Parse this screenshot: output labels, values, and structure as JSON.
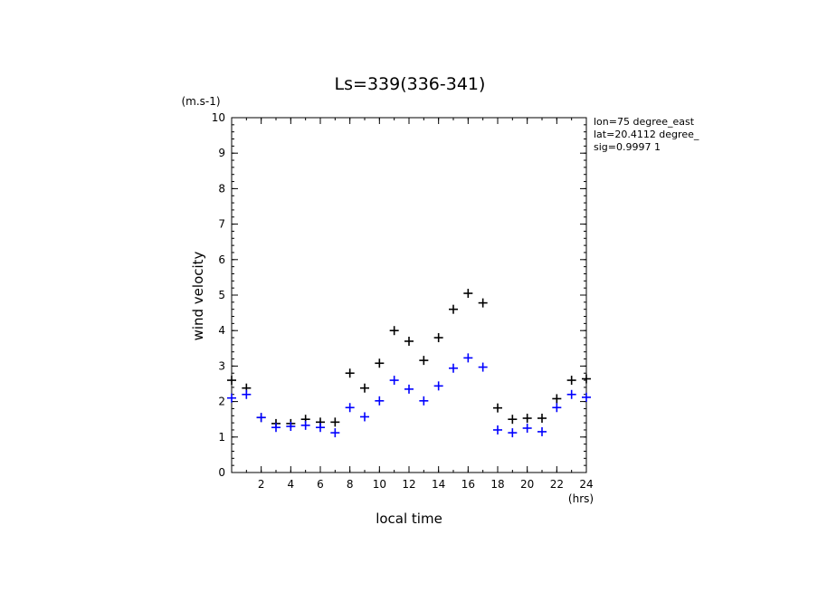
{
  "chart_data": {
    "type": "scatter",
    "title": "Ls=339(336-341)",
    "ylabel": "wind velocity",
    "xlabel": "local time",
    "yunit": "(m.s-1)",
    "xunit": "(hrs)",
    "xlim": [
      0,
      24
    ],
    "ylim": [
      0,
      10
    ],
    "xticks": [
      2,
      4,
      6,
      8,
      10,
      12,
      14,
      16,
      18,
      20,
      22,
      24
    ],
    "yticks": [
      0,
      1,
      2,
      3,
      4,
      5,
      6,
      7,
      8,
      9,
      10
    ],
    "info_lines": [
      "lon=75 degree_east",
      "lat=20.4112 degree_",
      "sig=0.9997 1"
    ],
    "series": [
      {
        "color": "#000000",
        "x": [
          0,
          1,
          2,
          3,
          4,
          5,
          6,
          7,
          8,
          9,
          10,
          11,
          12,
          13,
          14,
          15,
          16,
          17,
          18,
          19,
          20,
          21,
          22,
          23,
          24
        ],
        "y": [
          2.6,
          2.38,
          1.55,
          1.38,
          1.38,
          1.5,
          1.42,
          1.42,
          2.8,
          2.38,
          3.08,
          4.0,
          3.7,
          3.16,
          3.8,
          4.6,
          5.05,
          4.78,
          1.82,
          1.5,
          1.53,
          1.53,
          2.08,
          2.6,
          2.64
        ]
      },
      {
        "color": "#0000ff",
        "x": [
          0,
          1,
          2,
          3,
          4,
          5,
          6,
          7,
          8,
          9,
          10,
          11,
          12,
          13,
          14,
          15,
          16,
          17,
          18,
          19,
          20,
          21,
          22,
          23,
          24
        ],
        "y": [
          2.1,
          2.2,
          1.55,
          1.27,
          1.3,
          1.33,
          1.27,
          1.12,
          1.83,
          1.57,
          2.02,
          2.6,
          2.35,
          2.02,
          2.44,
          2.94,
          3.23,
          2.97,
          1.2,
          1.12,
          1.25,
          1.15,
          1.83,
          2.2,
          2.12
        ]
      }
    ]
  }
}
